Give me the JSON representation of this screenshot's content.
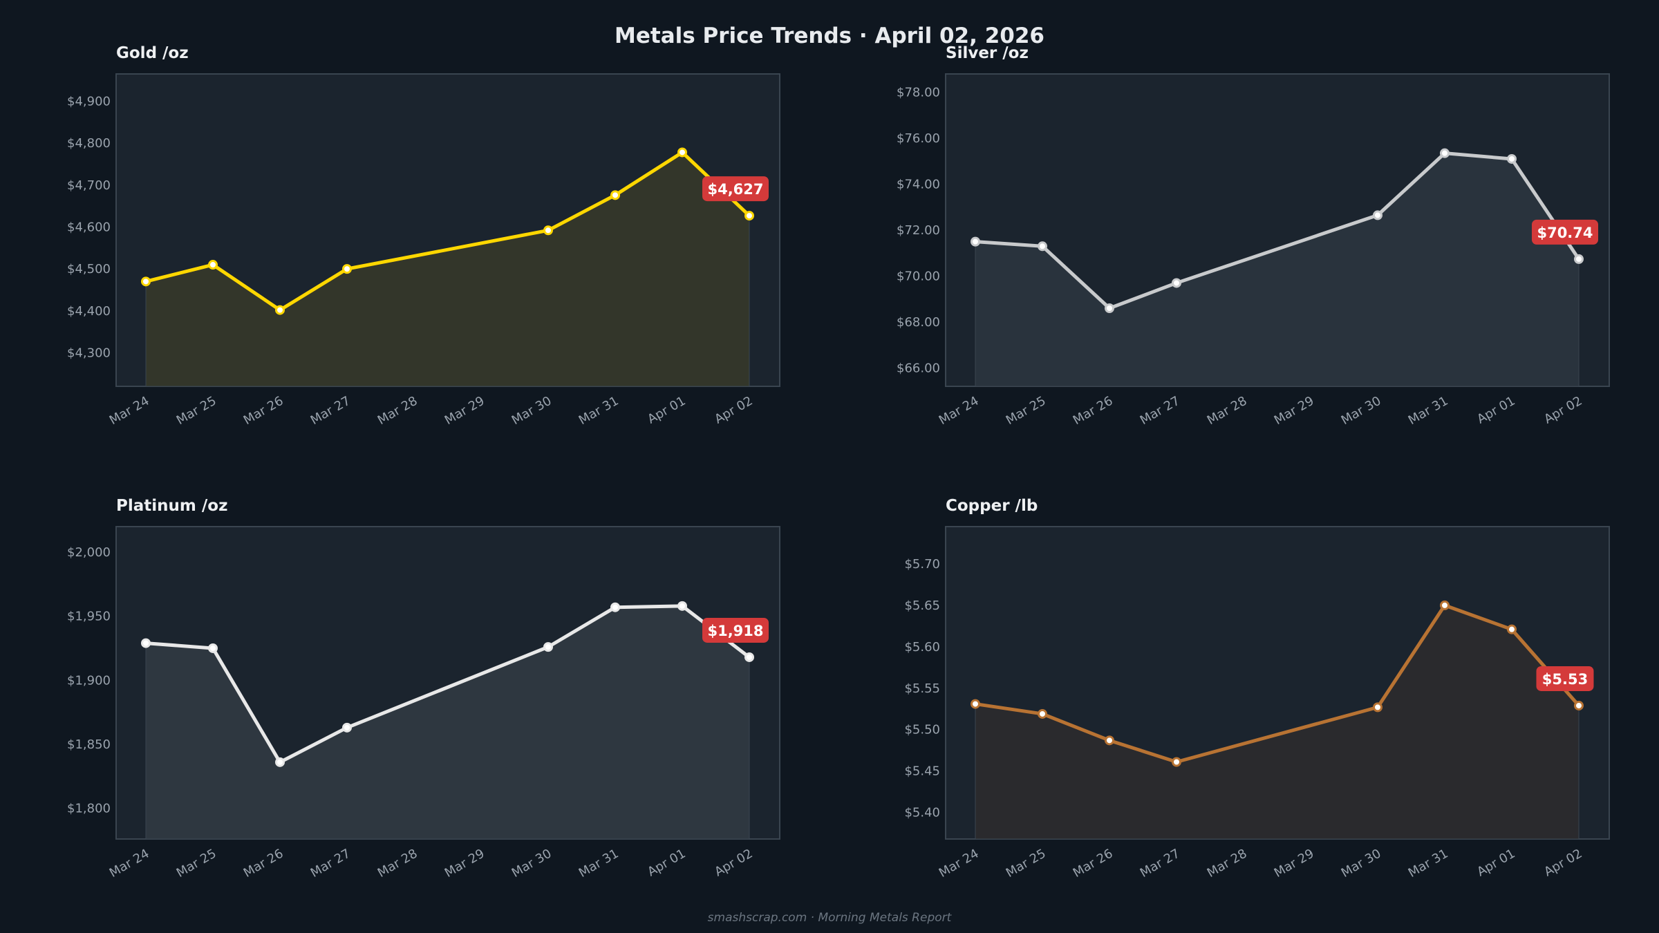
{
  "header": {
    "title": "Metals Price Trends  ·  April 02, 2026"
  },
  "footer": {
    "text": "smashscrap.com  ·  Morning Metals Report"
  },
  "chart_data": [
    {
      "type": "line",
      "title": "Gold  /oz",
      "unit": "oz",
      "color": "#ffd700",
      "fill": "#33362a",
      "x": [
        "Mar 24",
        "Mar 25",
        "Mar 26",
        "Mar 27",
        "Mar 28",
        "Mar 29",
        "Mar 30",
        "Mar 31",
        "Apr 01",
        "Apr 02"
      ],
      "points": [
        [
          0,
          4470
        ],
        [
          1,
          4510
        ],
        [
          2,
          4402
        ],
        [
          3,
          4500
        ],
        [
          6,
          4592
        ],
        [
          7,
          4676
        ],
        [
          8,
          4778
        ],
        [
          9,
          4627
        ]
      ],
      "ylim": [
        4220,
        4965
      ],
      "yticks": [
        4300,
        4400,
        4500,
        4600,
        4700,
        4800,
        4900
      ],
      "ytick_labels": [
        "$4,300",
        "$4,400",
        "$4,500",
        "$4,600",
        "$4,700",
        "$4,800",
        "$4,900"
      ],
      "last_label": "$4,627"
    },
    {
      "type": "line",
      "title": "Silver  /oz",
      "unit": "oz",
      "color": "#c8cacc",
      "fill": "#29333d",
      "x": [
        "Mar 24",
        "Mar 25",
        "Mar 26",
        "Mar 27",
        "Mar 28",
        "Mar 29",
        "Mar 30",
        "Mar 31",
        "Apr 01",
        "Apr 02"
      ],
      "points": [
        [
          0,
          71.5
        ],
        [
          1,
          71.3
        ],
        [
          2,
          68.6
        ],
        [
          3,
          69.7
        ],
        [
          6,
          72.65
        ],
        [
          7,
          75.35
        ],
        [
          8,
          75.1
        ],
        [
          9,
          70.74
        ]
      ],
      "ylim": [
        65.2,
        78.8
      ],
      "yticks": [
        66,
        68,
        70,
        72,
        74,
        76,
        78
      ],
      "ytick_labels": [
        "$66.00",
        "$68.00",
        "$70.00",
        "$72.00",
        "$74.00",
        "$76.00",
        "$78.00"
      ],
      "last_label": "$70.74"
    },
    {
      "type": "line",
      "title": "Platinum  /oz",
      "unit": "oz",
      "color": "#e8e8e8",
      "fill": "#2e3740",
      "x": [
        "Mar 24",
        "Mar 25",
        "Mar 26",
        "Mar 27",
        "Mar 28",
        "Mar 29",
        "Mar 30",
        "Mar 31",
        "Apr 01",
        "Apr 02"
      ],
      "points": [
        [
          0,
          1929
        ],
        [
          1,
          1925
        ],
        [
          2,
          1836
        ],
        [
          3,
          1863
        ],
        [
          6,
          1926
        ],
        [
          7,
          1957
        ],
        [
          8,
          1958
        ],
        [
          9,
          1918
        ]
      ],
      "ylim": [
        1776,
        2020
      ],
      "yticks": [
        1800,
        1850,
        1900,
        1950,
        2000
      ],
      "ytick_labels": [
        "$1,800",
        "$1,850",
        "$1,900",
        "$1,950",
        "$2,000"
      ],
      "last_label": "$1,918"
    },
    {
      "type": "line",
      "title": "Copper  /lb",
      "unit": "lb",
      "color": "#b87333",
      "fill": "#2a2a2d",
      "x": [
        "Mar 24",
        "Mar 25",
        "Mar 26",
        "Mar 27",
        "Mar 28",
        "Mar 29",
        "Mar 30",
        "Mar 31",
        "Apr 01",
        "Apr 02"
      ],
      "points": [
        [
          0,
          5.531
        ],
        [
          1,
          5.519
        ],
        [
          2,
          5.487
        ],
        [
          3,
          5.461
        ],
        [
          6,
          5.527
        ],
        [
          7,
          5.65
        ],
        [
          8,
          5.621
        ],
        [
          9,
          5.529
        ]
      ],
      "ylim": [
        5.368,
        5.745
      ],
      "yticks": [
        5.4,
        5.45,
        5.5,
        5.55,
        5.6,
        5.65,
        5.7
      ],
      "ytick_labels": [
        "$5.40",
        "$5.45",
        "$5.50",
        "$5.55",
        "$5.60",
        "$5.65",
        "$5.70"
      ],
      "last_label": "$5.53"
    }
  ]
}
